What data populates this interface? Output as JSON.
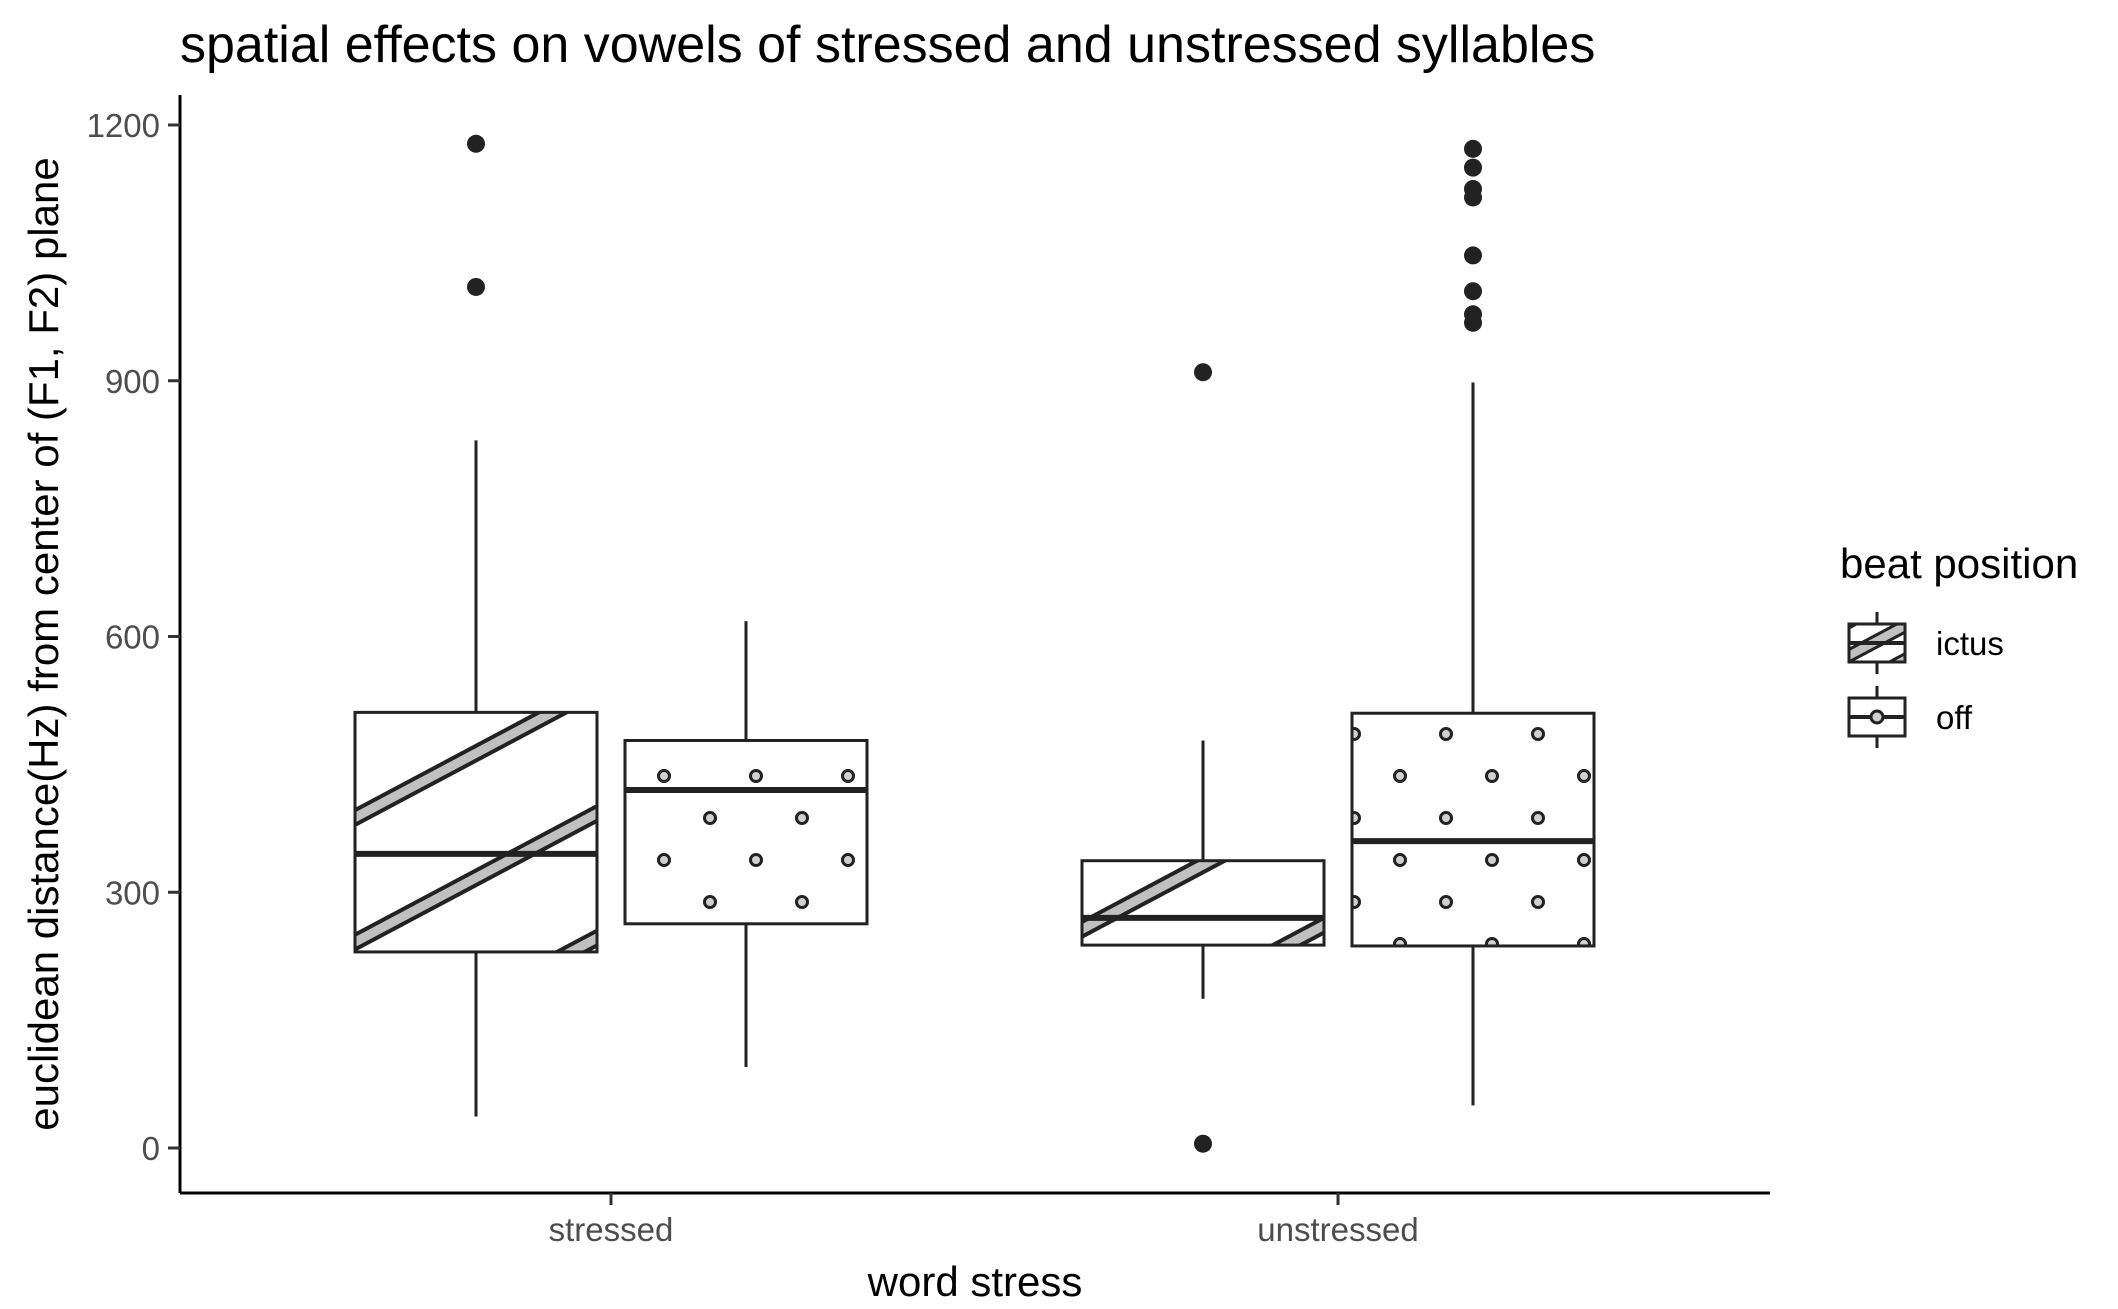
{
  "chart_data": {
    "type": "boxplot",
    "title": "spatial effects on vowels of stressed and unstressed syllables",
    "xlabel": "word stress",
    "ylabel": "euclidean distance(Hz) from center of (F1, F2) plane",
    "categories": [
      "stressed",
      "unstressed"
    ],
    "ylim": [
      -50,
      1240
    ],
    "yticks": [
      0,
      300,
      600,
      900,
      1200
    ],
    "grid": false,
    "legend": {
      "title": "beat position",
      "placement": "right",
      "entries": [
        "ictus",
        "off"
      ]
    },
    "series": [
      {
        "name": "ictus",
        "pattern": "stripe",
        "boxes": [
          {
            "category": "stressed",
            "lower_whisker": 37,
            "q1": 230,
            "median": 345,
            "q3": 511,
            "upper_whisker": 830,
            "outliers": [
              1010,
              1178
            ]
          },
          {
            "category": "unstressed",
            "lower_whisker": 175,
            "q1": 238,
            "median": 270,
            "q3": 337,
            "upper_whisker": 478,
            "outliers": [
              5,
              910
            ]
          }
        ]
      },
      {
        "name": "off",
        "pattern": "dot",
        "boxes": [
          {
            "category": "stressed",
            "lower_whisker": 95,
            "q1": 263,
            "median": 420,
            "q3": 478,
            "upper_whisker": 618,
            "outliers": []
          },
          {
            "category": "unstressed",
            "lower_whisker": 50,
            "q1": 237,
            "median": 360,
            "q3": 510,
            "upper_whisker": 898,
            "outliers": [
              968,
              978,
              1005,
              1047,
              1115,
              1125,
              1150,
              1172
            ]
          }
        ]
      }
    ],
    "colors": {
      "stripe_fill": "#c0c0c0",
      "line": "#222222",
      "background": "#ffffff"
    }
  }
}
